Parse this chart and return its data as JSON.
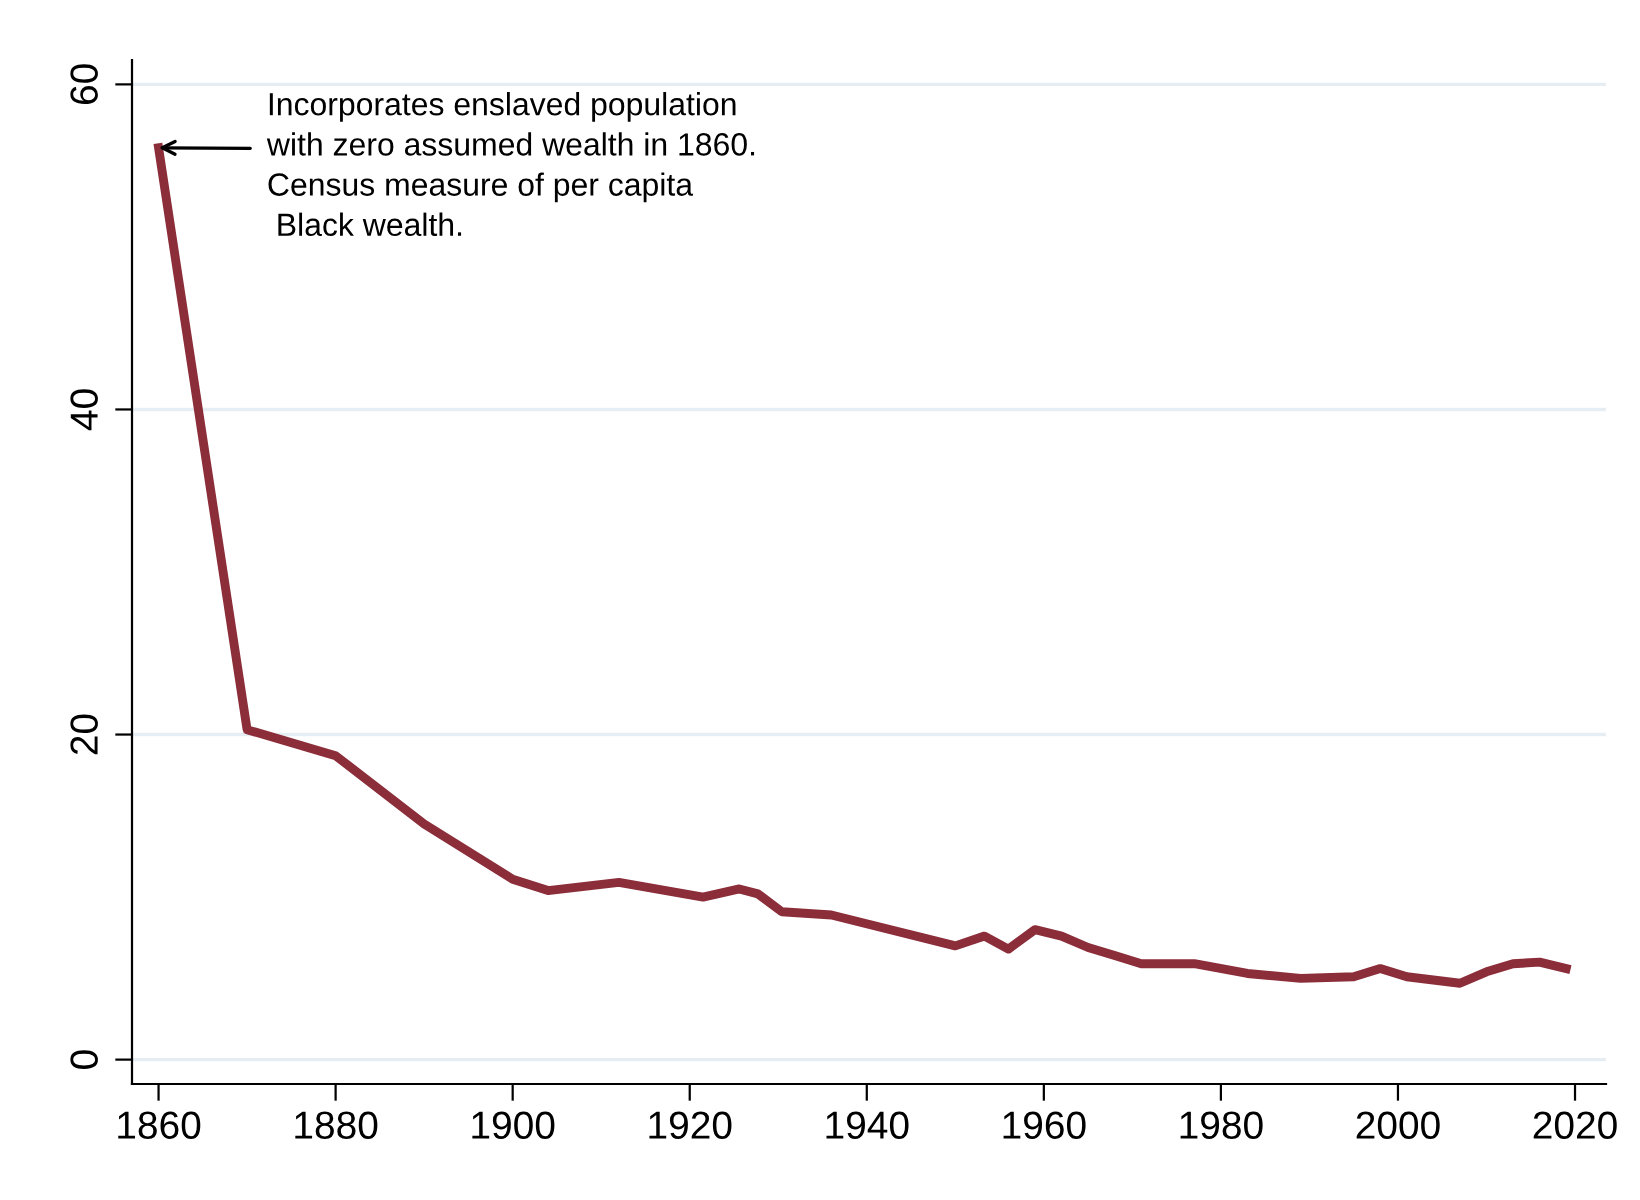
{
  "chart_data": {
    "type": "line",
    "x": [
      1860,
      1870,
      1880,
      1890,
      1900,
      1904,
      1912,
      1921.5,
      1925.6,
      1927.7,
      1930.4,
      1936,
      1950,
      1953.3,
      1956,
      1959,
      1962,
      1965,
      1968,
      1971,
      1977,
      1983,
      1989,
      1995,
      1998,
      2001,
      2007,
      2010,
      2013,
      2016,
      2019
    ],
    "series": [
      {
        "color": "#8c2d3a",
        "values": [
          56.1,
          20.3,
          18.7,
          14.5,
          11.1,
          10.4,
          10.9,
          10.0,
          10.5,
          10.2,
          9.1,
          8.9,
          7.0,
          7.6,
          6.8,
          8.0,
          7.6,
          6.9,
          6.4,
          5.9,
          5.9,
          5.3,
          5.0,
          5.1,
          5.6,
          5.1,
          4.7,
          5.4,
          5.9,
          6.0,
          5.6
        ]
      }
    ],
    "xlim": [
      1857,
      2023.5
    ],
    "ylim": [
      -1.5,
      61.5
    ],
    "xticks": [
      1860,
      1880,
      1900,
      1920,
      1940,
      1960,
      1980,
      2000,
      2020
    ],
    "yticks": [
      0,
      20,
      40,
      60
    ],
    "grid": "y",
    "marker": "none",
    "line_style": "solid",
    "annotations": [
      {
        "text": "Incorporates enslaved population\nwith zero assumed wealth in 1860.\nCensus measure of per capita\n Black wealth.",
        "x": 1860,
        "y": 56.1
      }
    ]
  }
}
